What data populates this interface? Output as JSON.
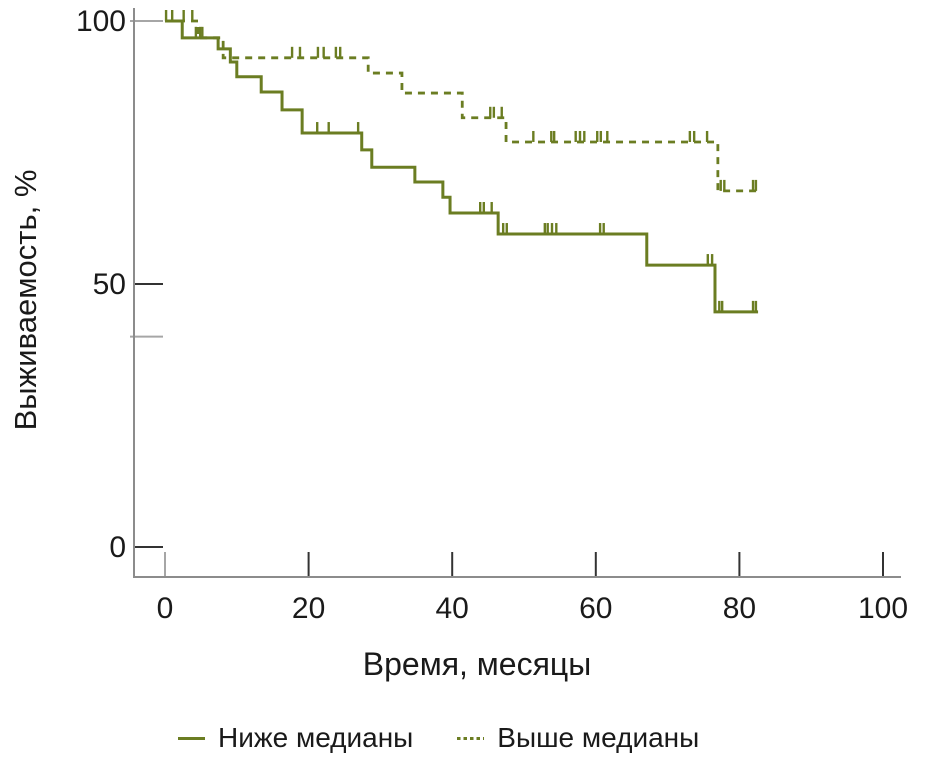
{
  "chart_data": {
    "type": "line",
    "subtype": "kaplan-meier-step",
    "title": "",
    "xlabel": "Время, месяцы",
    "ylabel": "Выживаемость, %",
    "x_ticks": [
      0,
      20,
      40,
      60,
      80,
      100
    ],
    "y_ticks": [
      100,
      50,
      0
    ],
    "y_minor_unlabeled_tick": 40,
    "xlim": [
      0,
      100
    ],
    "ylim": [
      0,
      100
    ],
    "grid": "off",
    "legend_position": "bottom",
    "line_color": "#6b7d22",
    "axis_color": "#8c8c8c",
    "tick_color_major": "#333333",
    "tick_color_faint": "#a6a6a6",
    "text_color": "#1a1a1a",
    "end_month": 82.6,
    "series": [
      {
        "name": "Ниже медианы",
        "style": "solid",
        "levels": [
          [
            0,
            100
          ],
          [
            2.4,
            96.8
          ],
          [
            7.4,
            94.7
          ],
          [
            9.1,
            92.2
          ],
          [
            10.0,
            89.4
          ],
          [
            13.4,
            86.5
          ],
          [
            16.3,
            83.1
          ],
          [
            19.1,
            78.7
          ],
          [
            27.4,
            75.5
          ],
          [
            28.8,
            72.2
          ],
          [
            34.8,
            69.4
          ],
          [
            38.7,
            66.5
          ],
          [
            39.7,
            63.5
          ],
          [
            46.4,
            59.5
          ],
          [
            67.1,
            53.6
          ],
          [
            76.6,
            44.7
          ]
        ],
        "censors": [
          [
            0.15,
            100
          ],
          [
            1.0,
            100
          ],
          [
            4.3,
            96.8
          ],
          [
            4.9,
            96.8
          ],
          [
            21.2,
            78.7
          ],
          [
            22.8,
            78.7
          ],
          [
            26.9,
            78.7
          ],
          [
            43.9,
            63.5
          ],
          [
            44.4,
            63.5
          ],
          [
            45.5,
            63.5
          ],
          [
            47.1,
            59.5
          ],
          [
            47.6,
            59.5
          ],
          [
            52.9,
            59.5
          ],
          [
            53.3,
            59.5
          ],
          [
            53.9,
            59.5
          ],
          [
            54.5,
            59.5
          ],
          [
            60.6,
            59.5
          ],
          [
            61.1,
            59.5
          ],
          [
            75.6,
            53.6
          ],
          [
            76.2,
            53.6
          ],
          [
            77.2,
            44.7
          ],
          [
            77.6,
            44.7
          ],
          [
            81.9,
            44.7
          ],
          [
            82.3,
            44.7
          ]
        ]
      },
      {
        "name": "Выше медианы",
        "style": "dashed",
        "levels": [
          [
            0,
            100
          ],
          [
            4.6,
            96.8
          ],
          [
            8.1,
            93.0
          ],
          [
            28.3,
            90.1
          ],
          [
            33.0,
            86.3
          ],
          [
            41.4,
            81.6
          ],
          [
            47.5,
            77.0
          ],
          [
            77.0,
            67.7
          ]
        ],
        "censors": [
          [
            2.6,
            100
          ],
          [
            3.8,
            100
          ],
          [
            5.2,
            96.8
          ],
          [
            17.7,
            93.0
          ],
          [
            18.8,
            93.0
          ],
          [
            21.3,
            93.0
          ],
          [
            22.1,
            93.0
          ],
          [
            23.8,
            93.0
          ],
          [
            24.4,
            93.0
          ],
          [
            45.3,
            81.6
          ],
          [
            45.8,
            81.6
          ],
          [
            46.9,
            81.6
          ],
          [
            51.3,
            77.0
          ],
          [
            53.8,
            77.0
          ],
          [
            54.2,
            77.0
          ],
          [
            57.2,
            77.0
          ],
          [
            57.8,
            77.0
          ],
          [
            58.4,
            77.0
          ],
          [
            60.2,
            77.0
          ],
          [
            60.7,
            77.0
          ],
          [
            61.6,
            77.0
          ],
          [
            73.1,
            77.0
          ],
          [
            73.7,
            77.0
          ],
          [
            75.5,
            77.0
          ],
          [
            77.4,
            67.7
          ],
          [
            77.9,
            67.7
          ],
          [
            81.9,
            67.7
          ],
          [
            82.3,
            67.7
          ]
        ]
      }
    ]
  }
}
